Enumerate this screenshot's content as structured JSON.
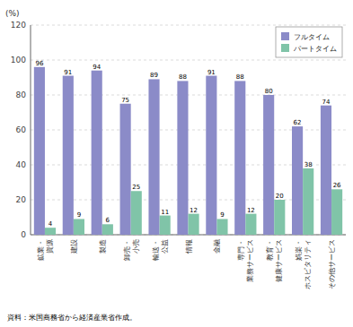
{
  "chart_data": {
    "type": "bar",
    "categories": [
      "鉱業・\n資源",
      "建設",
      "製造",
      "卸売・\n小売",
      "輸送・\n公益",
      "情報",
      "金融",
      "専門・\n業務サービス",
      "教育・\n健康サービス",
      "娯楽・\nホスピタリティ",
      "その他サービス"
    ],
    "series": [
      {
        "name": "フルタイム",
        "color": "#8b8bc8",
        "values": [
          96,
          91,
          94,
          75,
          89,
          88,
          91,
          88,
          80,
          62,
          74
        ]
      },
      {
        "name": "パートタイム",
        "color": "#80c4a8",
        "values": [
          4,
          9,
          6,
          25,
          11,
          12,
          9,
          12,
          20,
          38,
          26
        ]
      }
    ],
    "y_label": "(%)",
    "annotations": [
      "資料：米国商務省から経済産業省作成。"
    ],
    "ylim": [
      0,
      120
    ],
    "yticks": [
      0,
      20,
      40,
      60,
      80,
      100,
      120
    ],
    "grid": true,
    "legend": "upper right",
    "data_labels": true
  }
}
